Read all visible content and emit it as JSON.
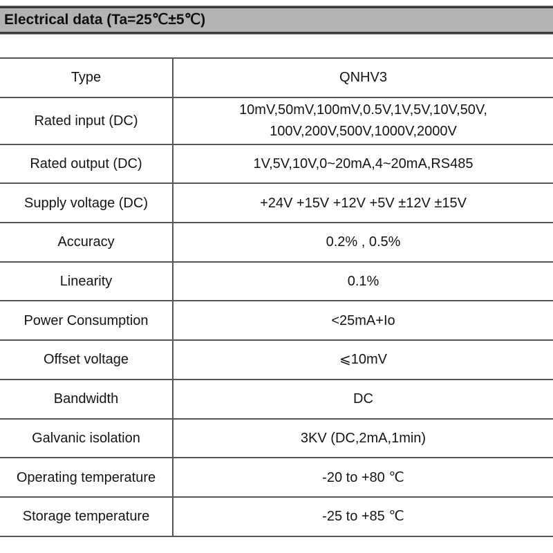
{
  "header": {
    "title": "Electrical data (Ta=25℃±5℃)"
  },
  "table": {
    "rows": [
      {
        "label": "Type",
        "value": "QNHV3"
      },
      {
        "label": "Rated input (DC)",
        "value_lines": [
          "10mV,50mV,100mV,0.5V,1V,5V,10V,50V,",
          "100V,200V,500V,1000V,2000V"
        ]
      },
      {
        "label": "Rated output (DC)",
        "value": "1V,5V,10V,0~20mA,4~20mA,RS485"
      },
      {
        "label": "Supply voltage (DC)",
        "value": "+24V +15V +12V +5V ±12V ±15V"
      },
      {
        "label": "Accuracy",
        "value": "0.2% , 0.5%"
      },
      {
        "label": "Linearity",
        "value": "0.1%"
      },
      {
        "label": "Power Consumption",
        "value": "<25mA+Io"
      },
      {
        "label": "Offset voltage",
        "value": "⩽10mV"
      },
      {
        "label": "Bandwidth",
        "value": "DC"
      },
      {
        "label": "Galvanic isolation",
        "value": "3KV (DC,2mA,1min)"
      },
      {
        "label": "Operating temperature",
        "value": "-20 to +80 ℃"
      },
      {
        "label": "Storage temperature",
        "value": "-25 to +85 ℃"
      }
    ]
  },
  "colors": {
    "header_bg": "#b3b3b3",
    "header_border": "#3a3a3a",
    "grid_line": "#555555",
    "text": "#141414"
  }
}
